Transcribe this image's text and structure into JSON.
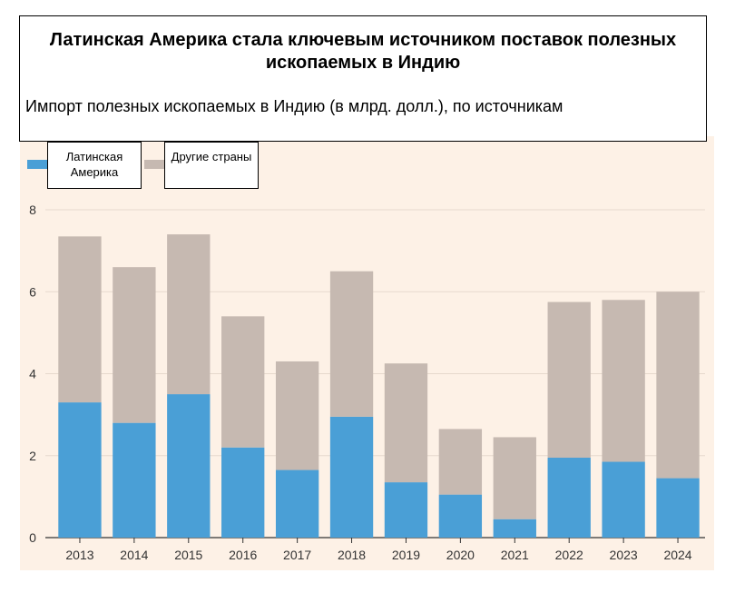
{
  "title": "Латинская Америка стала ключевым источником поставок полезных ископаемых в Индию",
  "subtitle": "Импорт полезных ископаемых в Индию (в млрд. долл.), по источникам",
  "legend": [
    {
      "label": "Латинская Америка",
      "color": "#4a9fd6"
    },
    {
      "label": "Другие страны",
      "color": "#c6b9b1"
    }
  ],
  "colors": {
    "background": "#fdf1e6",
    "grid": "#e6d9cd",
    "axis": "#333333"
  },
  "chart_data": {
    "type": "bar",
    "stacked": true,
    "title": "Латинская Америка стала ключевым источником поставок полезных ископаемых в Индию",
    "subtitle": "Импорт полезных ископаемых в Индию (в млрд. долл.), по источникам",
    "categories": [
      "2013",
      "2014",
      "2015",
      "2016",
      "2017",
      "2018",
      "2019",
      "2020",
      "2021",
      "2022",
      "2023",
      "2024"
    ],
    "series": [
      {
        "name": "Латинская Америка",
        "values": [
          3.3,
          2.8,
          3.5,
          2.2,
          1.65,
          2.95,
          1.35,
          1.05,
          0.45,
          1.95,
          1.85,
          1.45
        ]
      },
      {
        "name": "Другие страны",
        "values": [
          4.05,
          3.8,
          3.9,
          3.2,
          2.65,
          3.55,
          2.9,
          1.6,
          2.0,
          3.8,
          3.95,
          4.55
        ]
      }
    ],
    "yticks": [
      0,
      2,
      4,
      6,
      8
    ],
    "ylim": [
      0,
      8
    ],
    "grid": true,
    "legend_position": "top-left",
    "xlabel": "",
    "ylabel": ""
  }
}
